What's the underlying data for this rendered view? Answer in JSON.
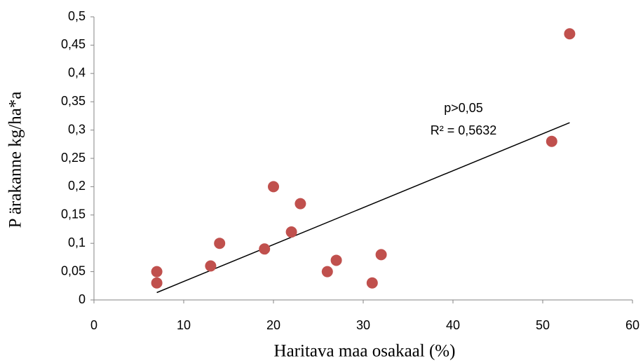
{
  "chart_data": {
    "type": "scatter",
    "x_label": "Haritava maa osakaal (%)",
    "y_label": "P ärakanne kg/ha*a",
    "annotations": [
      "p>0,05",
      "R² = 0,5632"
    ],
    "series": [
      {
        "color": "#c0504d",
        "x": [
          7,
          7,
          13,
          14,
          19,
          20,
          22,
          23,
          26,
          27,
          31,
          32,
          51,
          53
        ],
        "values": [
          0.05,
          0.03,
          0.06,
          0.1,
          0.09,
          0.2,
          0.12,
          0.17,
          0.05,
          0.07,
          0.03,
          0.08,
          0.28,
          0.47
        ]
      }
    ],
    "trendline": {
      "color": "#000000",
      "x": [
        7,
        53
      ],
      "values": [
        0.013,
        0.313
      ]
    },
    "xlim": [
      0,
      60
    ],
    "xticks": [
      0,
      10,
      20,
      30,
      40,
      50,
      60
    ],
    "ylim": [
      0,
      0.5
    ],
    "yticks": [
      0,
      {
        "value": 0.05,
        "label": "0,05"
      },
      {
        "value": 0.1,
        "label": "0,1"
      },
      {
        "value": 0.15,
        "label": "0,15"
      },
      {
        "value": 0.2,
        "label": "0,2"
      },
      {
        "value": 0.25,
        "label": "0,25"
      },
      {
        "value": 0.3,
        "label": "0,3"
      },
      {
        "value": 0.35,
        "label": "0,35"
      },
      {
        "value": 0.4,
        "label": "0,4"
      },
      {
        "value": 0.45,
        "label": "0,45"
      },
      {
        "value": 0.5,
        "label": "0,5"
      }
    ],
    "grid": false
  }
}
